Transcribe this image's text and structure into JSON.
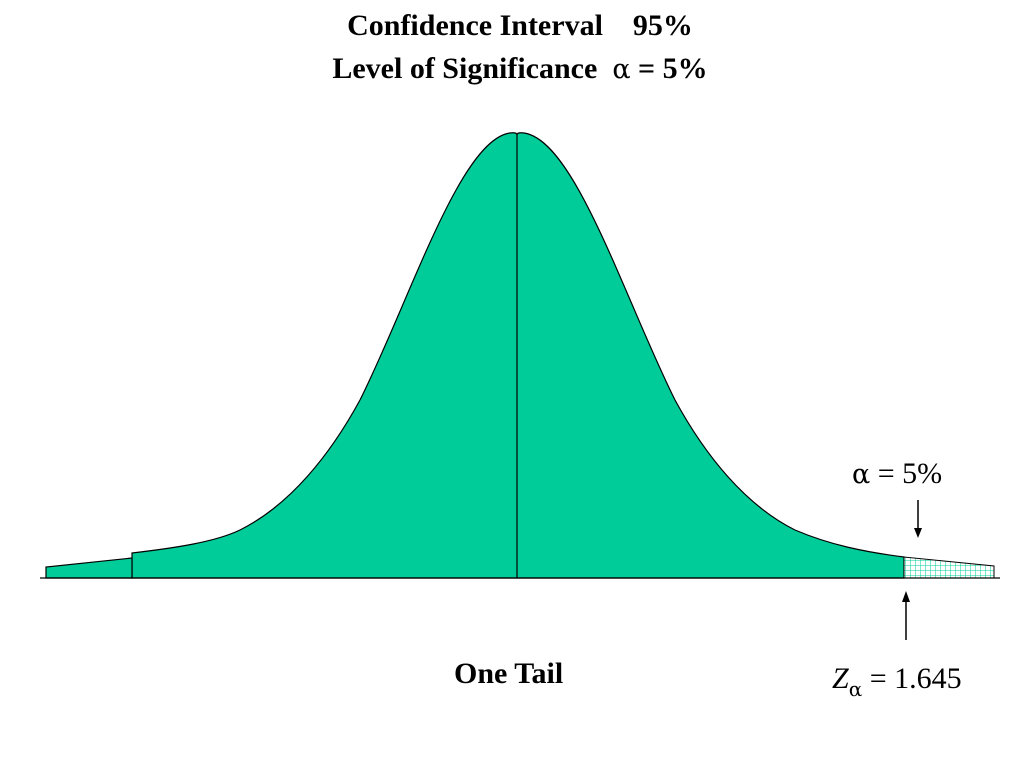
{
  "title": {
    "line1": "Confidence Interval    95%",
    "line2_prefix": "Level of Significance  ",
    "line2_symbol": "α",
    "line2_suffix": " = 5%"
  },
  "tail_annotation": {
    "symbol": "α",
    "text": " = 5%"
  },
  "critical_value": {
    "symbol": "Z",
    "subscript": "α",
    "text": " = 1.645"
  },
  "caption": "One Tail",
  "colors": {
    "curve_fill": "#00CC99",
    "outline": "#000000",
    "tail_hatch": "#00CC99"
  }
}
